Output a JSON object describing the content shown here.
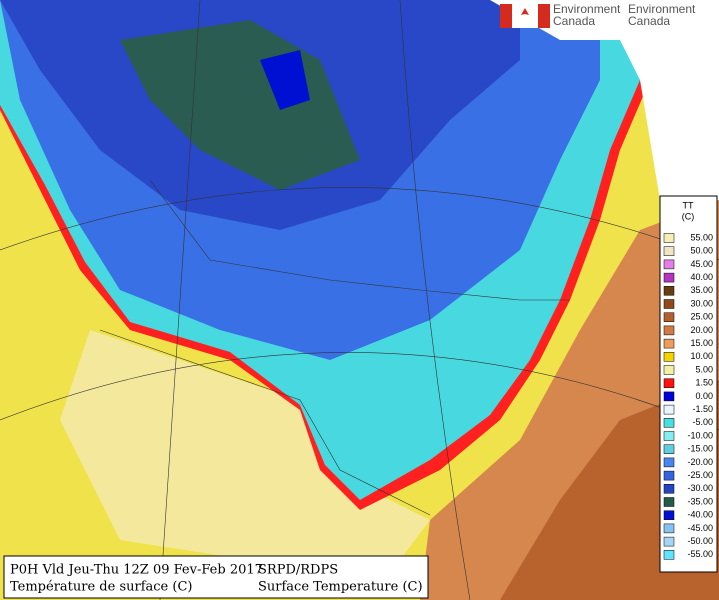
{
  "header": {
    "logo_left": [
      "Environment",
      "Canada"
    ],
    "logo_right": [
      "Environment",
      "Canada"
    ]
  },
  "legend": {
    "title": "TT",
    "unit": "(C)",
    "items": [
      {
        "label": "55.00",
        "color": "#f6eeb4"
      },
      {
        "label": "50.00",
        "color": "#efe4c4"
      },
      {
        "label": "45.00",
        "color": "#e27ee6"
      },
      {
        "label": "40.00",
        "color": "#b434c2"
      },
      {
        "label": "35.00",
        "color": "#6a3c12"
      },
      {
        "label": "30.00",
        "color": "#8e4a1a"
      },
      {
        "label": "25.00",
        "color": "#b4602e"
      },
      {
        "label": "20.00",
        "color": "#d07a44"
      },
      {
        "label": "15.00",
        "color": "#ee9c5e"
      },
      {
        "label": "10.00",
        "color": "#f4d400"
      },
      {
        "label": "5.00",
        "color": "#f2f0a2"
      },
      {
        "label": "1.50",
        "color": "#ff1010"
      },
      {
        "label": "0.00",
        "color": "#0000dc"
      },
      {
        "label": "-1.50",
        "color": "#e8f4ff"
      },
      {
        "label": "-5.00",
        "color": "#46dede"
      },
      {
        "label": "-10.00",
        "color": "#82eef2"
      },
      {
        "label": "-15.00",
        "color": "#5ecfe0"
      },
      {
        "label": "-20.00",
        "color": "#4a86f0"
      },
      {
        "label": "-25.00",
        "color": "#3464e0"
      },
      {
        "label": "-30.00",
        "color": "#2444c2"
      },
      {
        "label": "-35.00",
        "color": "#245a4a"
      },
      {
        "label": "-40.00",
        "color": "#0010d2"
      },
      {
        "label": "-45.00",
        "color": "#84c2f0"
      },
      {
        "label": "-50.00",
        "color": "#a6d4f2"
      },
      {
        "label": "-55.00",
        "color": "#62e2ff"
      }
    ]
  },
  "footer": {
    "left": [
      "P0H Vld Jeu-Thu 12Z 09 Fev-Feb 2017",
      "Température de surface (C)"
    ],
    "right": [
      "SRPD/RDPS",
      "Surface Temperature (C)"
    ]
  }
}
